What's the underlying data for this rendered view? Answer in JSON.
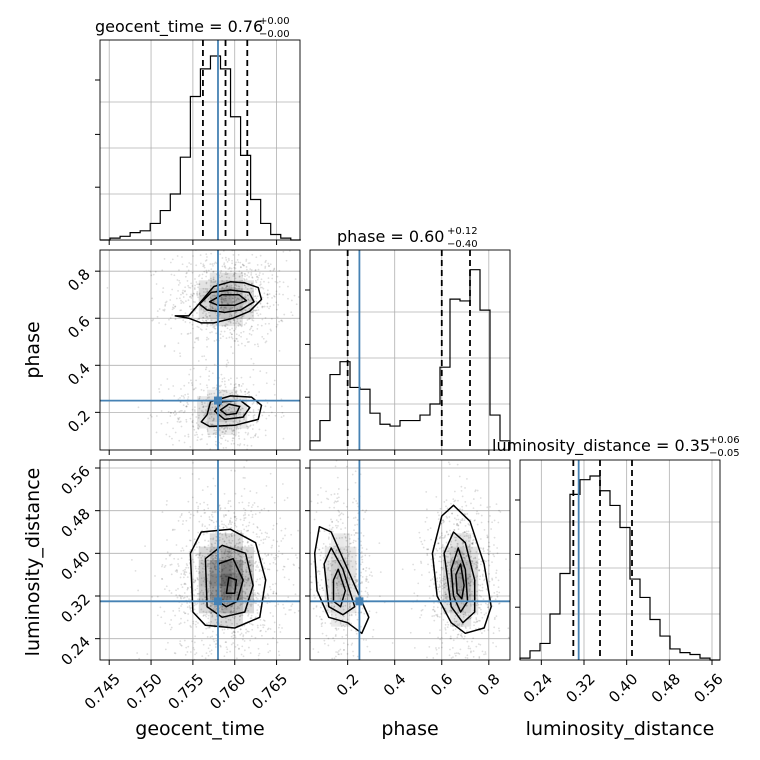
{
  "chart_data": {
    "type": "corner",
    "parameters": [
      "geocent_time",
      "phase",
      "luminosity_distance"
    ],
    "truths": {
      "geocent_time": 0.758,
      "phase": 0.25,
      "luminosity_distance": 0.31
    },
    "colors": {
      "truth": "#4682b4",
      "hist": "#000000",
      "grid": "#b0b0b0",
      "contour": "#000000"
    },
    "grid": true,
    "titles": [
      {
        "param": "geocent_time",
        "main": "geocent_time = 0.76",
        "plus": "+0.00",
        "minus": "−0.00"
      },
      {
        "param": "phase",
        "main": "phase = 0.60",
        "plus": "+0.12",
        "minus": "−0.40"
      },
      {
        "param": "luminosity_distance",
        "main": "luminosity_distance = 0.35",
        "plus": "+0.06",
        "minus": "−0.05"
      }
    ],
    "axis_labels": {
      "geocent_time": "geocent_time",
      "phase": "phase",
      "luminosity_distance": "luminosity_distance"
    },
    "ticks": {
      "geocent_time": [
        "0.745",
        "0.750",
        "0.755",
        "0.760",
        "0.765"
      ],
      "phase": [
        "0.2",
        "0.4",
        "0.6",
        "0.8"
      ],
      "luminosity_distance": [
        "0.24",
        "0.32",
        "0.40",
        "0.48",
        "0.56"
      ]
    },
    "ranges": {
      "geocent_time": [
        0.7439,
        0.7678
      ],
      "phase": [
        0.04,
        0.89
      ],
      "luminosity_distance": [
        0.2,
        0.575
      ]
    },
    "quantiles": {
      "geocent_time": [
        0.7562,
        0.7589,
        0.7615
      ],
      "phase": [
        0.2,
        0.6,
        0.72
      ],
      "luminosity_distance": [
        0.3,
        0.35,
        0.41
      ]
    },
    "hist_geocent_time": {
      "edges_start": 0.7439,
      "bin_width": 0.0012,
      "counts": [
        0,
        0.01,
        0.02,
        0.04,
        0.05,
        0.09,
        0.16,
        0.25,
        0.45,
        0.78,
        0.93,
        1.0,
        0.93,
        0.67,
        0.46,
        0.22,
        0.09,
        0.03,
        0.01,
        0
      ]
    },
    "hist_phase": {
      "edges_start": 0.04,
      "bin_width": 0.0425,
      "counts": [
        0.05,
        0.16,
        0.41,
        0.48,
        0.34,
        0.33,
        0.2,
        0.14,
        0.13,
        0.16,
        0.16,
        0.19,
        0.25,
        0.45,
        0.82,
        0.81,
        0.98,
        0.76,
        0.19,
        0.05
      ]
    },
    "hist_luminosity_distance": {
      "edges_start": 0.2,
      "bin_width": 0.01875,
      "counts": [
        0.01,
        0.05,
        0.09,
        0.25,
        0.47,
        0.9,
        0.98,
        1.0,
        0.92,
        0.84,
        0.72,
        0.44,
        0.34,
        0.22,
        0.13,
        0.06,
        0.04,
        0.03,
        0.01,
        0
      ]
    },
    "clusters": {
      "phase_vs_geocent_time": [
        {
          "x": 0.759,
          "y": 0.68,
          "sx": 0.0022,
          "sy": 0.065,
          "w": 0.62
        },
        {
          "x": 0.7585,
          "y": 0.2,
          "sx": 0.002,
          "sy": 0.055,
          "w": 0.38
        }
      ],
      "luminosity_distance_vs_geocent_time": [
        {
          "x": 0.759,
          "y": 0.35,
          "sx": 0.0022,
          "sy": 0.05,
          "w": 1.0
        }
      ],
      "luminosity_distance_vs_phase": [
        {
          "x": 0.17,
          "y": 0.35,
          "sx": 0.045,
          "sy": 0.05,
          "w": 0.38
        },
        {
          "x": 0.68,
          "y": 0.35,
          "sx": 0.05,
          "sy": 0.05,
          "w": 0.62
        }
      ]
    },
    "contours": {
      "phase_vs_geocent_time": [
        [
          [
            0.7529,
            0.61
          ],
          [
            0.7545,
            0.61
          ],
          [
            0.7562,
            0.68
          ],
          [
            0.7575,
            0.735
          ],
          [
            0.7595,
            0.755
          ],
          [
            0.7612,
            0.75
          ],
          [
            0.7628,
            0.73
          ],
          [
            0.7632,
            0.68
          ],
          [
            0.7618,
            0.63
          ],
          [
            0.7598,
            0.6
          ],
          [
            0.7575,
            0.58
          ],
          [
            0.756,
            0.58
          ],
          [
            0.7545,
            0.6
          ],
          [
            0.7529,
            0.61
          ]
        ],
        [
          [
            0.7558,
            0.66
          ],
          [
            0.7572,
            0.71
          ],
          [
            0.7595,
            0.72
          ],
          [
            0.7617,
            0.71
          ],
          [
            0.7623,
            0.67
          ],
          [
            0.7607,
            0.635
          ],
          [
            0.7588,
            0.625
          ],
          [
            0.7567,
            0.635
          ],
          [
            0.7558,
            0.66
          ]
        ],
        [
          [
            0.757,
            0.67
          ],
          [
            0.7585,
            0.7
          ],
          [
            0.7605,
            0.7
          ],
          [
            0.7614,
            0.675
          ],
          [
            0.76,
            0.655
          ],
          [
            0.758,
            0.655
          ],
          [
            0.757,
            0.67
          ]
        ],
        [
          [
            0.7567,
            0.19
          ],
          [
            0.7571,
            0.245
          ],
          [
            0.7595,
            0.27
          ],
          [
            0.762,
            0.265
          ],
          [
            0.7632,
            0.23
          ],
          [
            0.7628,
            0.17
          ],
          [
            0.76,
            0.145
          ],
          [
            0.757,
            0.14
          ],
          [
            0.756,
            0.16
          ],
          [
            0.7567,
            0.19
          ]
        ],
        [
          [
            0.7576,
            0.205
          ],
          [
            0.7585,
            0.245
          ],
          [
            0.7607,
            0.25
          ],
          [
            0.7618,
            0.22
          ],
          [
            0.761,
            0.18
          ],
          [
            0.7588,
            0.17
          ],
          [
            0.7576,
            0.205
          ]
        ],
        [
          [
            0.7583,
            0.21
          ],
          [
            0.7593,
            0.235
          ],
          [
            0.7606,
            0.225
          ],
          [
            0.7602,
            0.195
          ],
          [
            0.759,
            0.19
          ],
          [
            0.7583,
            0.21
          ]
        ]
      ],
      "luminosity_distance_vs_geocent_time": [
        [
          [
            0.755,
            0.29
          ],
          [
            0.7547,
            0.4
          ],
          [
            0.756,
            0.44
          ],
          [
            0.7595,
            0.445
          ],
          [
            0.7625,
            0.42
          ],
          [
            0.7637,
            0.35
          ],
          [
            0.763,
            0.28
          ],
          [
            0.76,
            0.26
          ],
          [
            0.7565,
            0.265
          ],
          [
            0.755,
            0.29
          ]
        ],
        [
          [
            0.7567,
            0.3
          ],
          [
            0.7565,
            0.39
          ],
          [
            0.7585,
            0.415
          ],
          [
            0.7613,
            0.4
          ],
          [
            0.7622,
            0.34
          ],
          [
            0.7612,
            0.29
          ],
          [
            0.7585,
            0.28
          ],
          [
            0.7567,
            0.3
          ]
        ],
        [
          [
            0.758,
            0.31
          ],
          [
            0.758,
            0.38
          ],
          [
            0.7598,
            0.39
          ],
          [
            0.761,
            0.35
          ],
          [
            0.7603,
            0.31
          ],
          [
            0.759,
            0.3
          ],
          [
            0.758,
            0.31
          ]
        ],
        [
          [
            0.759,
            0.325
          ],
          [
            0.7593,
            0.355
          ],
          [
            0.7602,
            0.35
          ],
          [
            0.76,
            0.325
          ],
          [
            0.759,
            0.325
          ]
        ]
      ],
      "luminosity_distance_vs_phase": [
        [
          [
            0.06,
            0.4
          ],
          [
            0.08,
            0.45
          ],
          [
            0.13,
            0.44
          ],
          [
            0.23,
            0.34
          ],
          [
            0.29,
            0.28
          ],
          [
            0.26,
            0.25
          ],
          [
            0.2,
            0.27
          ],
          [
            0.12,
            0.28
          ],
          [
            0.07,
            0.33
          ],
          [
            0.06,
            0.4
          ]
        ],
        [
          [
            0.1,
            0.38
          ],
          [
            0.13,
            0.41
          ],
          [
            0.18,
            0.37
          ],
          [
            0.23,
            0.3
          ],
          [
            0.18,
            0.285
          ],
          [
            0.12,
            0.3
          ],
          [
            0.1,
            0.38
          ]
        ],
        [
          [
            0.14,
            0.35
          ],
          [
            0.16,
            0.37
          ],
          [
            0.19,
            0.33
          ],
          [
            0.17,
            0.3
          ],
          [
            0.14,
            0.31
          ],
          [
            0.14,
            0.35
          ]
        ],
        [
          [
            0.56,
            0.4
          ],
          [
            0.6,
            0.47
          ],
          [
            0.65,
            0.49
          ],
          [
            0.72,
            0.46
          ],
          [
            0.78,
            0.38
          ],
          [
            0.81,
            0.3
          ],
          [
            0.78,
            0.26
          ],
          [
            0.7,
            0.25
          ],
          [
            0.64,
            0.27
          ],
          [
            0.58,
            0.32
          ],
          [
            0.56,
            0.4
          ]
        ],
        [
          [
            0.61,
            0.4
          ],
          [
            0.65,
            0.44
          ],
          [
            0.7,
            0.42
          ],
          [
            0.74,
            0.35
          ],
          [
            0.74,
            0.29
          ],
          [
            0.69,
            0.27
          ],
          [
            0.64,
            0.3
          ],
          [
            0.61,
            0.4
          ]
        ],
        [
          [
            0.64,
            0.37
          ],
          [
            0.67,
            0.41
          ],
          [
            0.7,
            0.37
          ],
          [
            0.71,
            0.31
          ],
          [
            0.68,
            0.29
          ],
          [
            0.65,
            0.32
          ],
          [
            0.64,
            0.37
          ]
        ],
        [
          [
            0.66,
            0.36
          ],
          [
            0.68,
            0.38
          ],
          [
            0.695,
            0.34
          ],
          [
            0.685,
            0.315
          ],
          [
            0.665,
            0.325
          ],
          [
            0.66,
            0.36
          ]
        ]
      ]
    }
  }
}
